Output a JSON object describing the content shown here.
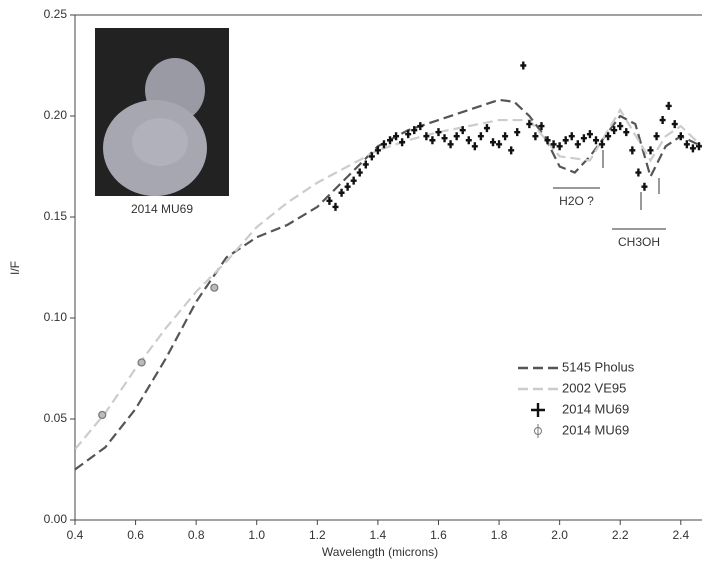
{
  "chart_data": {
    "type": "line",
    "x_label": "Wavelength (microns)",
    "y_label": "I/F",
    "xlim": [
      0.4,
      2.47
    ],
    "ylim": [
      0,
      0.25
    ],
    "xticks": [
      0.4,
      0.6,
      0.8,
      {
        "value": 1,
        "label": "1.0"
      },
      1.2,
      1.4,
      1.6,
      1.8,
      {
        "value": 2,
        "label": "2.0"
      },
      2.2,
      2.4
    ],
    "yticks": [
      {
        "value": 0,
        "label": "0.00"
      },
      {
        "value": 0.05,
        "label": "0.05"
      },
      {
        "value": 0.1,
        "label": "0.10"
      },
      {
        "value": 0.15,
        "label": "0.15"
      },
      {
        "value": 0.2,
        "label": "0.20"
      },
      {
        "value": 0.25,
        "label": "0.25"
      }
    ],
    "inset_label": "2014 MU69",
    "annotations": [
      "H2O ?",
      "CH3OH"
    ],
    "series": [
      {
        "name": "5145 Pholus",
        "color": "#555555",
        "style": "dashed",
        "x": [
          0.4,
          0.5,
          0.6,
          0.7,
          0.8,
          0.9,
          1.0,
          1.1,
          1.2,
          1.3,
          1.4,
          1.5,
          1.6,
          1.7,
          1.8,
          1.85,
          1.9,
          1.95,
          2.0,
          2.05,
          2.1,
          2.15,
          2.2,
          2.25,
          2.3,
          2.35,
          2.4,
          2.47
        ],
        "values": [
          0.025,
          0.036,
          0.055,
          0.08,
          0.108,
          0.13,
          0.14,
          0.146,
          0.155,
          0.17,
          0.185,
          0.193,
          0.198,
          0.203,
          0.208,
          0.207,
          0.2,
          0.19,
          0.175,
          0.172,
          0.18,
          0.19,
          0.2,
          0.196,
          0.17,
          0.185,
          0.19,
          0.185
        ]
      },
      {
        "name": "2002 VE95",
        "color": "#cccccc",
        "style": "dashed",
        "x": [
          0.4,
          0.5,
          0.6,
          0.7,
          0.8,
          0.9,
          1.0,
          1.1,
          1.2,
          1.3,
          1.4,
          1.5,
          1.6,
          1.7,
          1.8,
          1.9,
          2.0,
          2.1,
          2.2,
          2.3,
          2.35,
          2.4,
          2.47
        ],
        "values": [
          0.035,
          0.053,
          0.075,
          0.095,
          0.113,
          0.128,
          0.145,
          0.157,
          0.167,
          0.175,
          0.183,
          0.188,
          0.192,
          0.195,
          0.198,
          0.198,
          0.18,
          0.178,
          0.203,
          0.178,
          0.19,
          0.195,
          0.185
        ]
      },
      {
        "name": "2014 MU69",
        "color": "#111111",
        "style": "cross",
        "x": [
          1.24,
          1.26,
          1.28,
          1.3,
          1.32,
          1.34,
          1.36,
          1.38,
          1.4,
          1.42,
          1.44,
          1.46,
          1.48,
          1.5,
          1.52,
          1.54,
          1.56,
          1.58,
          1.6,
          1.62,
          1.64,
          1.66,
          1.68,
          1.7,
          1.72,
          1.74,
          1.76,
          1.78,
          1.8,
          1.82,
          1.84,
          1.86,
          1.88,
          1.9,
          1.92,
          1.94,
          1.96,
          1.98,
          2.0,
          2.02,
          2.04,
          2.06,
          2.08,
          2.1,
          2.12,
          2.14,
          2.16,
          2.18,
          2.2,
          2.22,
          2.24,
          2.26,
          2.28,
          2.3,
          2.32,
          2.34,
          2.36,
          2.38,
          2.4,
          2.42,
          2.44,
          2.46
        ],
        "values": [
          0.158,
          0.155,
          0.162,
          0.165,
          0.168,
          0.172,
          0.176,
          0.18,
          0.183,
          0.186,
          0.188,
          0.19,
          0.187,
          0.191,
          0.193,
          0.195,
          0.19,
          0.188,
          0.192,
          0.189,
          0.186,
          0.19,
          0.193,
          0.188,
          0.185,
          0.19,
          0.194,
          0.187,
          0.186,
          0.19,
          0.183,
          0.192,
          0.225,
          0.196,
          0.19,
          0.195,
          0.188,
          0.186,
          0.185,
          0.188,
          0.19,
          0.186,
          0.189,
          0.191,
          0.188,
          0.186,
          0.19,
          0.193,
          0.195,
          0.192,
          0.183,
          0.172,
          0.165,
          0.183,
          0.19,
          0.198,
          0.205,
          0.196,
          0.19,
          0.186,
          0.184,
          0.185
        ]
      },
      {
        "name": "2014 MU69",
        "color": "#777777",
        "style": "circle",
        "x": [
          0.49,
          0.62,
          0.86
        ],
        "values": [
          0.052,
          0.078,
          0.115
        ]
      }
    ]
  }
}
